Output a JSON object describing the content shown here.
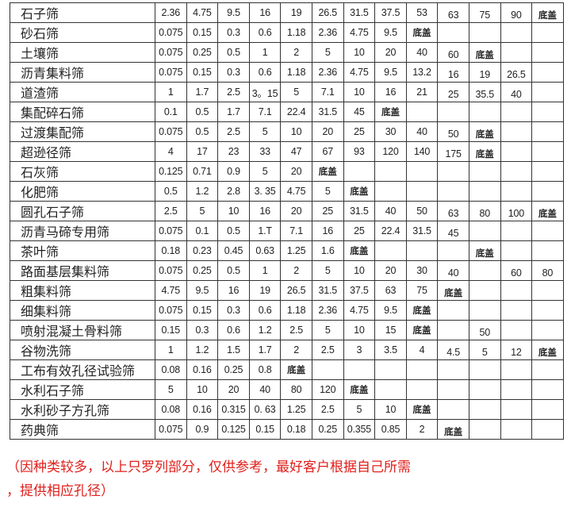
{
  "cap_label": "底盖",
  "rows": [
    {
      "name": "石子筛",
      "values": [
        "2.36",
        "4.75",
        "9.5",
        "16",
        "19",
        "26.5",
        "31.5",
        "37.5",
        "53",
        "63",
        "75",
        "90",
        "底盖"
      ]
    },
    {
      "name": "砂石筛",
      "values": [
        "0.075",
        "0.15",
        "0.3",
        "0.6",
        "1.18",
        "2.36",
        "4.75",
        "9.5",
        "底盖",
        "",
        "",
        "",
        ""
      ]
    },
    {
      "name": "土壤筛",
      "values": [
        "0.075",
        "0.25",
        "0.5",
        "1",
        "2",
        "5",
        "10",
        "20",
        "40",
        "60",
        "底盖",
        "",
        ""
      ]
    },
    {
      "name": "沥青集料筛",
      "values": [
        "0.075",
        "0.15",
        "0.3",
        "0.6",
        "1.18",
        "2.36",
        "4.75",
        "9.5",
        "13.2",
        "16",
        "19",
        "26.5",
        ""
      ]
    },
    {
      "name": "道渣筛",
      "values": [
        "1",
        "1.7",
        "2.5",
        "3。15",
        "5",
        "7.1",
        "10",
        "16",
        "21",
        "25",
        "35.5",
        "40",
        ""
      ]
    },
    {
      "name": "集配碎石筛",
      "values": [
        "0.1",
        "0.5",
        "1.7",
        "7.1",
        "22.4",
        "31.5",
        "45",
        "底盖",
        "",
        "",
        "",
        "",
        ""
      ]
    },
    {
      "name": "过渡集配筛",
      "values": [
        "0.075",
        "0.5",
        "2.5",
        "5",
        "10",
        "20",
        "25",
        "30",
        "40",
        "50",
        "底盖",
        "",
        ""
      ]
    },
    {
      "name": "超逊径筛",
      "values": [
        "4",
        "17",
        "23",
        "33",
        "47",
        "67",
        "93",
        "120",
        "140",
        "175",
        "底盖",
        "",
        ""
      ]
    },
    {
      "name": "石灰筛",
      "values": [
        "0.125",
        "0.71",
        "0.9",
        "5",
        "20",
        "底盖",
        "",
        "",
        "",
        "",
        "",
        "",
        ""
      ]
    },
    {
      "name": "化肥筛",
      "values": [
        "0.5",
        "1.2",
        "2.8",
        "3. 35",
        "4.75",
        "5",
        "底盖",
        "",
        "",
        "",
        "",
        "",
        ""
      ]
    },
    {
      "name": "圆孔石子筛",
      "values": [
        "2.5",
        "5",
        "10",
        "16",
        "20",
        "25",
        "31.5",
        "40",
        "50",
        "63",
        "80",
        "100",
        "底盖"
      ]
    },
    {
      "name": "沥青马碲专用筛",
      "values": [
        "0.075",
        "0.1",
        "0.5",
        "1.T",
        "7.1",
        "16",
        "25",
        "22.4",
        "31.5",
        "45",
        "",
        "",
        ""
      ]
    },
    {
      "name": "茶叶筛",
      "values": [
        "0.18",
        "0.23",
        "0.45",
        "0.63",
        "1.25",
        "1.6",
        "底盖",
        "",
        "",
        "",
        "底盖",
        "",
        ""
      ]
    },
    {
      "name": "路面基层集料筛",
      "values": [
        "0.075",
        "0.25",
        "0.5",
        "1",
        "2",
        "5",
        "10",
        "20",
        "30",
        "40",
        "",
        "60",
        "80"
      ]
    },
    {
      "name": "粗集料筛",
      "values": [
        "4.75",
        "9.5",
        "16",
        "19",
        "26.5",
        "31.5",
        "37.5",
        "63",
        "75",
        "底盖",
        "",
        "",
        ""
      ]
    },
    {
      "name": "细集料筛",
      "values": [
        "0.075",
        "0.15",
        "0.3",
        "0.6",
        "1.18",
        "2.36",
        "4.75",
        "9.5",
        "底盖",
        "",
        "",
        "",
        ""
      ]
    },
    {
      "name": "喷射混凝土骨料筛",
      "values": [
        "0.15",
        "0.3",
        "0.6",
        "1.2",
        "2.5",
        "5",
        "10",
        "15",
        "底盖",
        "",
        "50",
        "",
        ""
      ]
    },
    {
      "name": "谷物洗筛",
      "values": [
        "1",
        "1.2",
        "1.5",
        "1.7",
        "2",
        "2.5",
        "3",
        "3.5",
        "4",
        "4.5",
        "5",
        "12",
        "底盖"
      ]
    },
    {
      "name": "工布有效孔径试验筛",
      "values": [
        "0.08",
        "0.16",
        "0.25",
        "0.8",
        "底盖",
        "",
        "",
        "",
        "",
        "",
        "",
        "",
        ""
      ]
    },
    {
      "name": "水利石子筛",
      "values": [
        "5",
        "10",
        "20",
        "40",
        "80",
        "120",
        "底盖",
        "",
        "",
        "",
        "",
        "",
        ""
      ]
    },
    {
      "name": "水利砂子方孔筛",
      "values": [
        "0.08",
        "0.16",
        "0.315",
        "0. 63",
        "1.25",
        "2.5",
        "5",
        "10",
        "底盖",
        "",
        "",
        "",
        ""
      ]
    },
    {
      "name": "药典筛",
      "values": [
        "0.075",
        "0.9",
        "0.125",
        "0.15",
        "0.18",
        "0.25",
        "0.355",
        "0.85",
        "2",
        "底盖",
        "",
        "",
        ""
      ]
    }
  ],
  "note": {
    "line1": "（因种类较多，以上只罗列部分，仅供参考，最好客户根据自己所需",
    "line2": "，提供相应孔径）"
  },
  "colors": {
    "note_text": "#e0201c",
    "grid": "#333333"
  }
}
